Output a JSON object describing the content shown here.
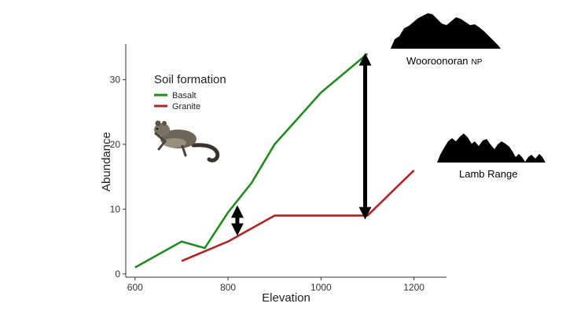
{
  "chart_data": {
    "type": "line",
    "title": "",
    "xlabel": "Elevation",
    "ylabel": "Abundance",
    "xlim": [
      580,
      1270
    ],
    "ylim": [
      -0.5,
      35.5
    ],
    "xticks": [
      600,
      800,
      1000,
      1200
    ],
    "yticks": [
      0,
      10,
      20,
      30
    ],
    "grid": false,
    "legend": {
      "title": "Soil formation",
      "placement": "top-left"
    },
    "series": [
      {
        "name": "Basalt",
        "color": "#228B22",
        "x": [
          600,
          700,
          750,
          800,
          850,
          900,
          1000,
          1100
        ],
        "y": [
          1,
          5,
          4,
          9.5,
          14,
          20,
          28,
          34
        ]
      },
      {
        "name": "Granite",
        "color": "#B22222",
        "x": [
          700,
          800,
          900,
          1000,
          1100,
          1200
        ],
        "y": [
          2,
          5,
          9,
          9,
          9,
          16
        ]
      }
    ],
    "annotations": [
      {
        "label": "Wooroonoran NP",
        "main": "Wooroonoran",
        "suffix": "NP",
        "icon": "mountain-silhouette-icon"
      },
      {
        "label": "Lamb Range",
        "icon": "mountain-silhouette-icon"
      }
    ],
    "difference_arrows": [
      {
        "x": 820,
        "y_from": 6.5,
        "y_to": 10
      },
      {
        "x": 1095,
        "y_from": 9,
        "y_to": 33.5
      }
    ],
    "picture_icon": "possum-icon"
  }
}
